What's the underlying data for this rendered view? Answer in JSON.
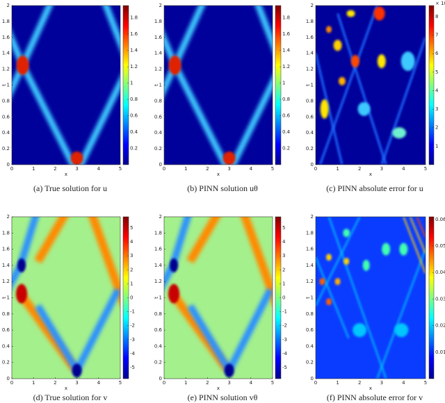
{
  "chart_data": [
    {
      "type": "heatmap",
      "caption": "(a) True solution for u",
      "xlabel": "x",
      "ylabel": "t",
      "xlim": [
        0,
        5
      ],
      "ylim": [
        0,
        2
      ],
      "xticks": [
        0,
        1,
        2,
        3,
        4,
        5
      ],
      "yticks": [
        0,
        0.2,
        0.4,
        0.6,
        0.8,
        1,
        1.2,
        1.4,
        1.6,
        1.8,
        2
      ],
      "colormap": "jet",
      "colorbar": {
        "lim": [
          0,
          1.95
        ],
        "ticks": [
          0.2,
          0.4,
          0.6,
          0.8,
          1,
          1.2,
          1.4,
          1.6,
          1.8
        ]
      }
    },
    {
      "type": "heatmap",
      "caption": "(b) PINN solution uθ",
      "xlabel": "x",
      "ylabel": "t",
      "xlim": [
        0,
        5
      ],
      "ylim": [
        0,
        2
      ],
      "xticks": [
        0,
        1,
        2,
        3,
        4,
        5
      ],
      "yticks": [
        0,
        0.2,
        0.4,
        0.6,
        0.8,
        1,
        1.2,
        1.4,
        1.6,
        1.8,
        2
      ],
      "colormap": "jet",
      "colorbar": {
        "lim": [
          0,
          1.95
        ],
        "ticks": [
          0.2,
          0.4,
          0.6,
          0.8,
          1,
          1.2,
          1.4,
          1.6,
          1.8
        ]
      }
    },
    {
      "type": "heatmap",
      "caption": "(c) PINN absolute error for u",
      "xlabel": "x",
      "ylabel": "t",
      "xlim": [
        0,
        5
      ],
      "ylim": [
        0,
        2
      ],
      "xticks": [
        0,
        1,
        2,
        3,
        4,
        5
      ],
      "yticks": [
        0,
        0.2,
        0.4,
        0.6,
        0.8,
        1,
        1.2,
        1.4,
        1.6,
        1.8,
        2
      ],
      "colormap": "jet",
      "colorbar": {
        "lim": [
          0,
          8.6
        ],
        "ticks": [
          1,
          2,
          3,
          4,
          5,
          6,
          7,
          8
        ],
        "offset_label": "× 10⁻³"
      }
    },
    {
      "type": "heatmap",
      "caption": "(d) True solution for v",
      "xlabel": "x",
      "ylabel": "t",
      "xlim": [
        0,
        5
      ],
      "ylim": [
        0,
        2
      ],
      "xticks": [
        0,
        1,
        2,
        3,
        4,
        5
      ],
      "yticks": [
        0,
        0.2,
        0.4,
        0.6,
        0.8,
        1,
        1.2,
        1.4,
        1.6,
        1.8,
        2
      ],
      "colormap": "jet",
      "colorbar": {
        "lim": [
          -5.8,
          5.8
        ],
        "ticks": [
          -5,
          -4,
          -3,
          -2,
          -1,
          0,
          1,
          2,
          3,
          4,
          5
        ]
      }
    },
    {
      "type": "heatmap",
      "caption": "(e) PINN solution vθ",
      "xlabel": "x",
      "ylabel": "t",
      "xlim": [
        0,
        5
      ],
      "ylim": [
        0,
        2
      ],
      "xticks": [
        0,
        1,
        2,
        3,
        4,
        5
      ],
      "yticks": [
        0,
        0.2,
        0.4,
        0.6,
        0.8,
        1,
        1.2,
        1.4,
        1.6,
        1.8,
        2
      ],
      "colormap": "jet",
      "colorbar": {
        "lim": [
          -5.8,
          5.8
        ],
        "ticks": [
          -5,
          -4,
          -3,
          -2,
          -1,
          0,
          1,
          2,
          3,
          4,
          5
        ]
      }
    },
    {
      "type": "heatmap",
      "caption": "(f) PINN absolute error for v",
      "xlabel": "x",
      "ylabel": "t",
      "xlim": [
        0,
        5
      ],
      "ylim": [
        0,
        2
      ],
      "xticks": [
        0,
        1,
        2,
        3,
        4,
        5
      ],
      "yticks": [
        0,
        0.2,
        0.4,
        0.6,
        0.8,
        1,
        1.2,
        1.4,
        1.6,
        1.8,
        2
      ],
      "colormap": "jet",
      "colorbar": {
        "lim": [
          0,
          0.061
        ],
        "ticks": [
          0.01,
          0.02,
          0.03,
          0.04,
          0.05,
          0.06
        ]
      }
    }
  ]
}
